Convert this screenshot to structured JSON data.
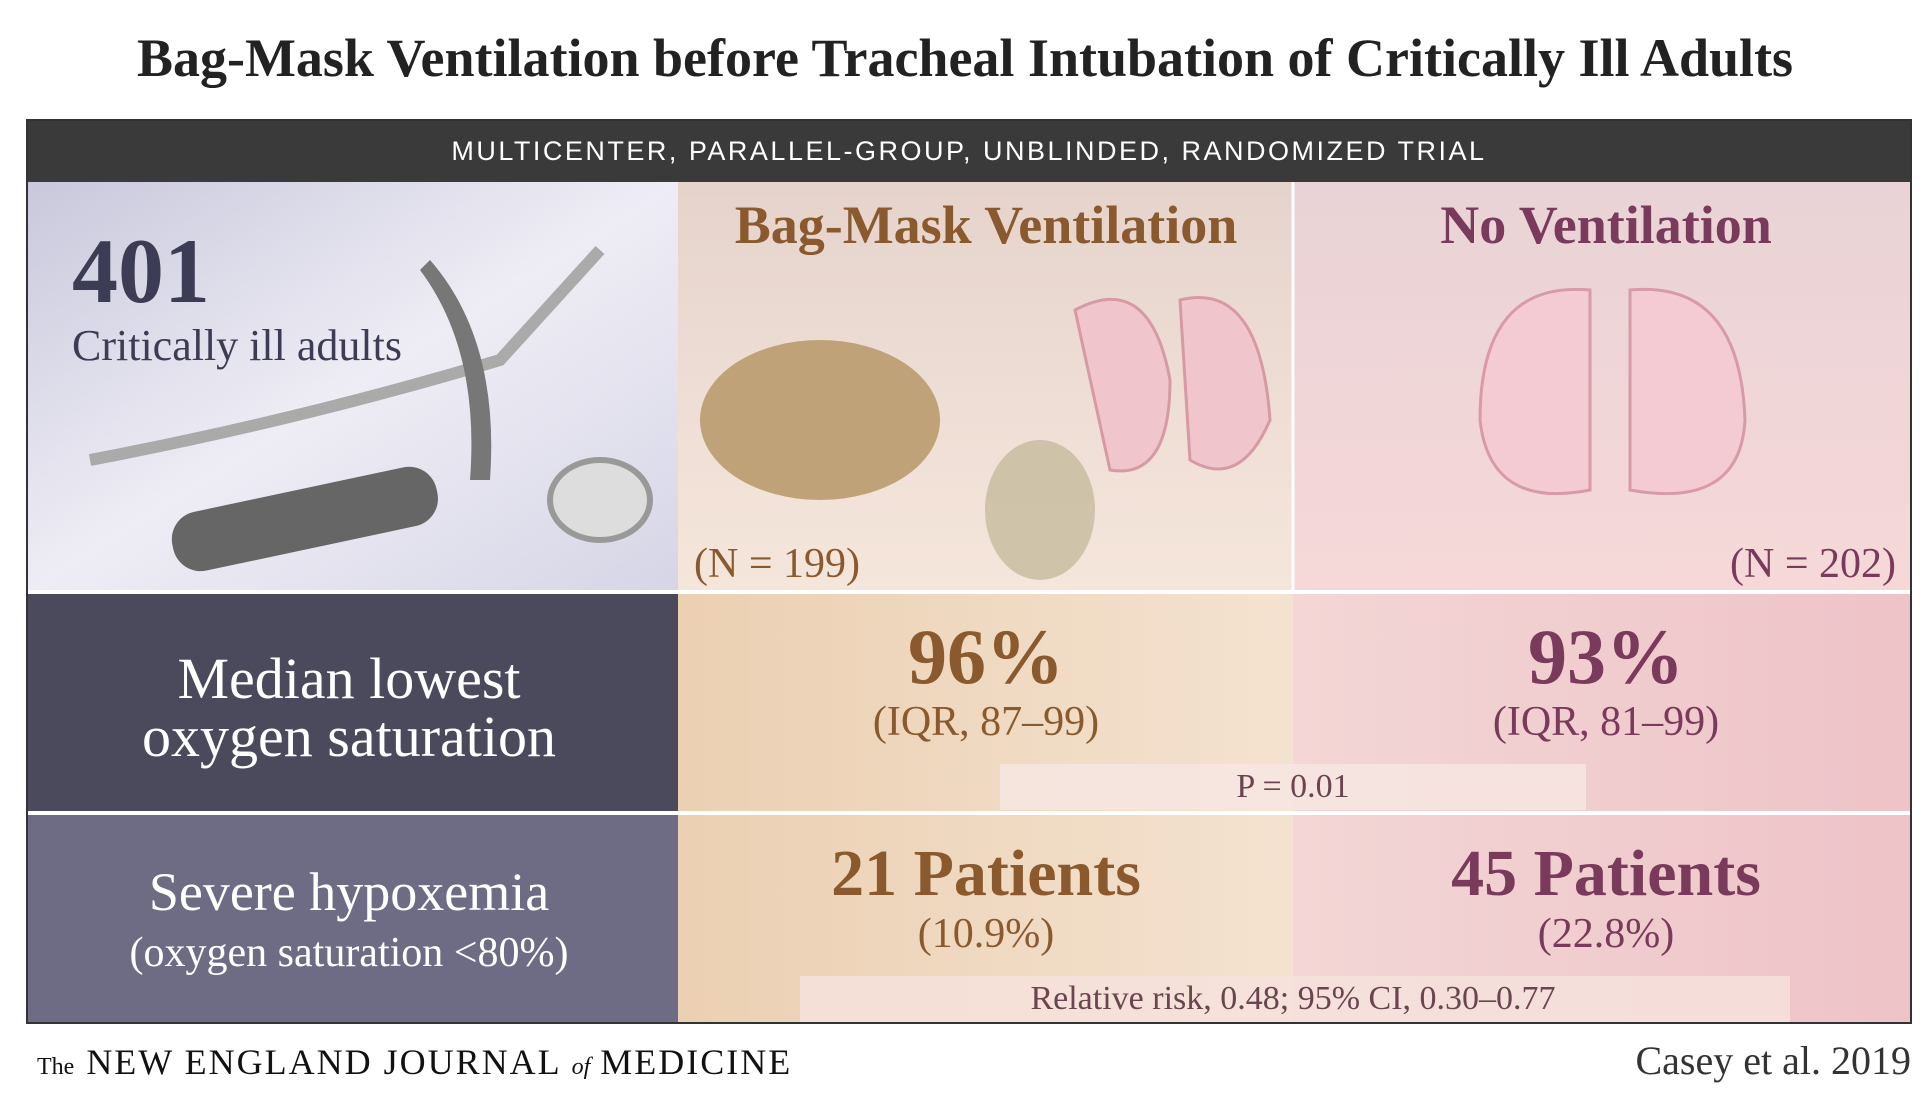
{
  "header": {
    "title": "Bag-Mask Ventilation before Tracheal Intubation of Critically Ill Adults",
    "banner": "MULTICENTER, PARALLEL-GROUP, UNBLINDED, RANDOMIZED TRIAL"
  },
  "population": {
    "count": "401",
    "label": "Critically ill adults"
  },
  "groups": [
    {
      "name": "Bag-Mask Ventilation",
      "n": "(N = 199)",
      "oxygen": "96%",
      "oxygen_iqr": "(IQR, 87–99)",
      "hypoxemia": "21 Patients",
      "hypoxemia_pct": "(10.9%)"
    },
    {
      "name": "No Ventilation",
      "n": "(N = 202)",
      "oxygen": "93%",
      "oxygen_iqr": "(IQR, 81–99)",
      "hypoxemia": "45 Patients",
      "hypoxemia_pct": "(22.8%)"
    }
  ],
  "outcomes": [
    {
      "label_lines": [
        "Median lowest",
        "oxygen saturation"
      ],
      "stat": "P = 0.01"
    },
    {
      "label": "Severe hypoxemia",
      "sublabel": "(oxygen saturation <80%)",
      "stat": "Relative risk, 0.48; 95% CI, 0.30–0.77"
    }
  ],
  "footer": {
    "journal": [
      "The",
      "NEW ENGLAND JOURNAL",
      "of",
      "MEDICINE"
    ],
    "citation": "Casey et al. 2019"
  }
}
